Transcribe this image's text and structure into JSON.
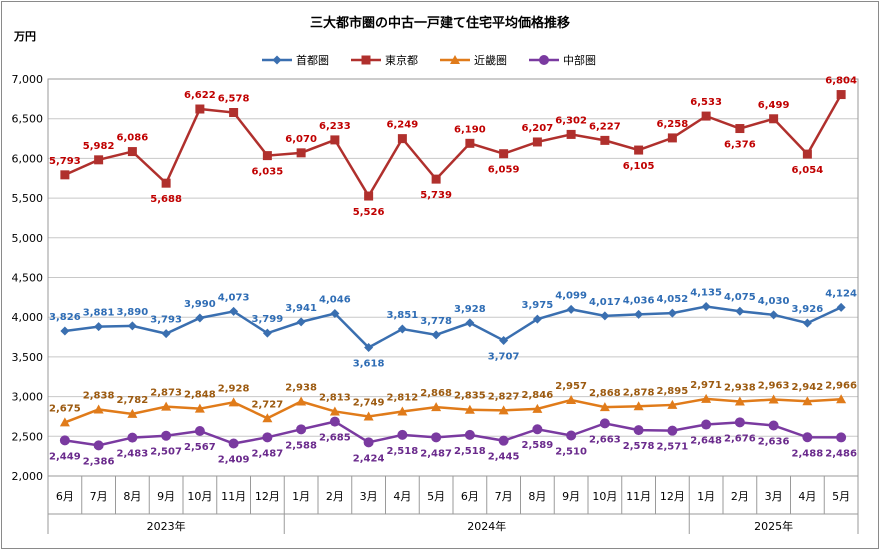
{
  "chart_data": {
    "type": "line",
    "title": "三大都市圏の中古一戸建て住宅平均価格推移",
    "ylabel": "万円",
    "ylim": [
      2000,
      7000
    ],
    "yticks": [
      2000,
      2500,
      3000,
      3500,
      4000,
      4500,
      5000,
      5500,
      6000,
      6500,
      7000
    ],
    "grid": true,
    "legend_position": "top",
    "categories": [
      "6月",
      "7月",
      "8月",
      "9月",
      "10月",
      "11月",
      "12月",
      "1月",
      "2月",
      "3月",
      "4月",
      "5月",
      "6月",
      "7月",
      "8月",
      "9月",
      "10月",
      "11月",
      "12月",
      "1月",
      "2月",
      "3月",
      "4月",
      "5月"
    ],
    "year_groups": [
      {
        "label": "2023年",
        "start": 0,
        "end": 6
      },
      {
        "label": "2024年",
        "start": 7,
        "end": 18
      },
      {
        "label": "2025年",
        "start": 19,
        "end": 23
      }
    ],
    "series": [
      {
        "name": "首都圏",
        "color": "#3a6fb0",
        "marker": "diamond",
        "values": [
          3826,
          3881,
          3890,
          3793,
          3990,
          4073,
          3799,
          3941,
          4046,
          3618,
          3851,
          3778,
          3928,
          3707,
          3975,
          4099,
          4017,
          4036,
          4052,
          4135,
          4075,
          4030,
          3926,
          4124
        ]
      },
      {
        "name": "東京都",
        "color": "#b0302d",
        "marker": "square",
        "values": [
          5793,
          5982,
          6086,
          5688,
          6622,
          6578,
          6035,
          6070,
          6233,
          5526,
          6249,
          5739,
          6190,
          6059,
          6207,
          6302,
          6227,
          6105,
          6258,
          6533,
          6376,
          6499,
          6054,
          6804
        ]
      },
      {
        "name": "近畿圏",
        "color": "#e07b1a",
        "marker": "triangle",
        "values": [
          2675,
          2838,
          2782,
          2873,
          2848,
          2928,
          2727,
          2938,
          2813,
          2749,
          2812,
          2868,
          2835,
          2827,
          2846,
          2957,
          2868,
          2878,
          2895,
          2971,
          2938,
          2963,
          2942,
          2966
        ]
      },
      {
        "name": "中部圏",
        "color": "#7a3aa0",
        "marker": "circle",
        "values": [
          2449,
          2386,
          2483,
          2507,
          2567,
          2409,
          2487,
          2588,
          2685,
          2424,
          2518,
          2487,
          2518,
          2445,
          2589,
          2510,
          2663,
          2578,
          2571,
          2648,
          2676,
          2636,
          2488,
          2486
        ]
      }
    ],
    "label_colors": [
      "#2f6db5",
      "#c00000",
      "#9c5a10",
      "#6a2a8c"
    ]
  }
}
